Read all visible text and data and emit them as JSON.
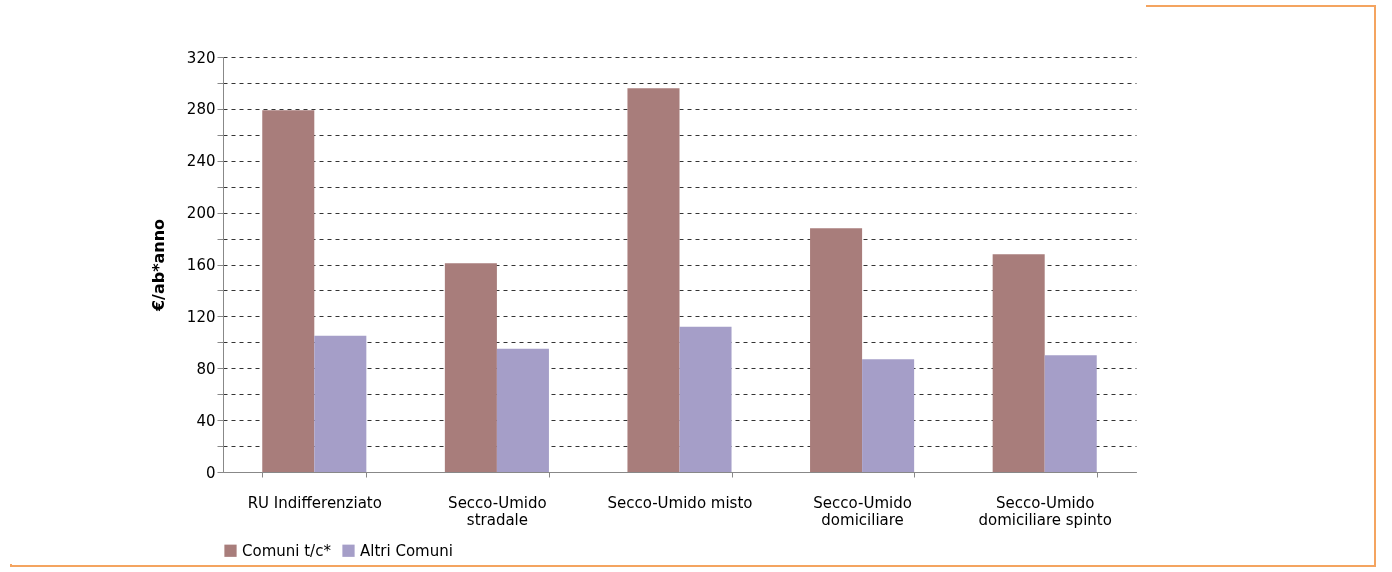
{
  "chart_data": {
    "type": "bar",
    "ylabel": "€/ab*anno",
    "categories": [
      "RU Indifferenziato",
      "Secco-Umido stradale",
      "Secco-Umido misto",
      "Secco-Umido domiciliare",
      "Secco-Umido domiciliare spinto"
    ],
    "series": [
      {
        "name": "Comuni t/c*",
        "color": "#a87d7b",
        "values": [
          279,
          161,
          296,
          188,
          168
        ]
      },
      {
        "name": "Altri Comuni",
        "color": "#a59ec8",
        "values": [
          105,
          95,
          112,
          87,
          90
        ]
      }
    ],
    "ylim": [
      0,
      320
    ],
    "yticks": [
      0,
      {
        "value": 20,
        "label": null
      },
      40,
      {
        "value": 60,
        "label": null
      },
      80,
      {
        "value": 100,
        "label": null
      },
      120,
      {
        "value": 140,
        "label": null
      },
      160,
      {
        "value": 180,
        "label": null
      },
      200,
      {
        "value": 220,
        "label": null
      },
      240,
      {
        "value": 260,
        "label": null
      },
      280,
      {
        "value": 300,
        "label": null
      },
      320
    ],
    "grid": true,
    "legend": "bottom"
  }
}
